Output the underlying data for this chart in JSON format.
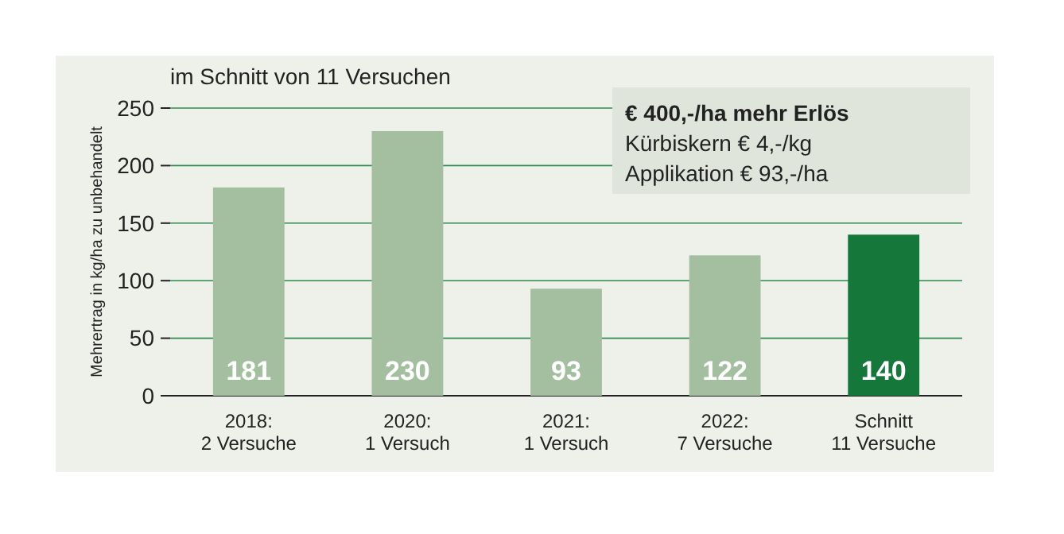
{
  "chart_data": {
    "type": "bar",
    "title": "im Schnitt von 11 Versuchen",
    "ylabel": "Mehrertrag in kg/ha zu unbehandelt",
    "categories": [
      "2018:\n2 Versuche",
      "2020:\n1 Versuch",
      "2021:\n1 Versuch",
      "2022:\n7 Versuche",
      "Schnitt\n11 Versuche"
    ],
    "values": [
      181,
      230,
      93,
      122,
      140
    ],
    "colors": [
      "#a4bf9f",
      "#a4bf9f",
      "#a4bf9f",
      "#a4bf9f",
      "#16773a"
    ],
    "ylim": [
      0,
      250
    ],
    "yticks": [
      0,
      50,
      100,
      150,
      200,
      250
    ],
    "grid": "y",
    "data_labels": true,
    "annotations": [
      "€ 400,-/ha mehr Erlös",
      "Kürbiskern € 4,-/kg",
      "Applikation € 93,-/ha"
    ]
  }
}
